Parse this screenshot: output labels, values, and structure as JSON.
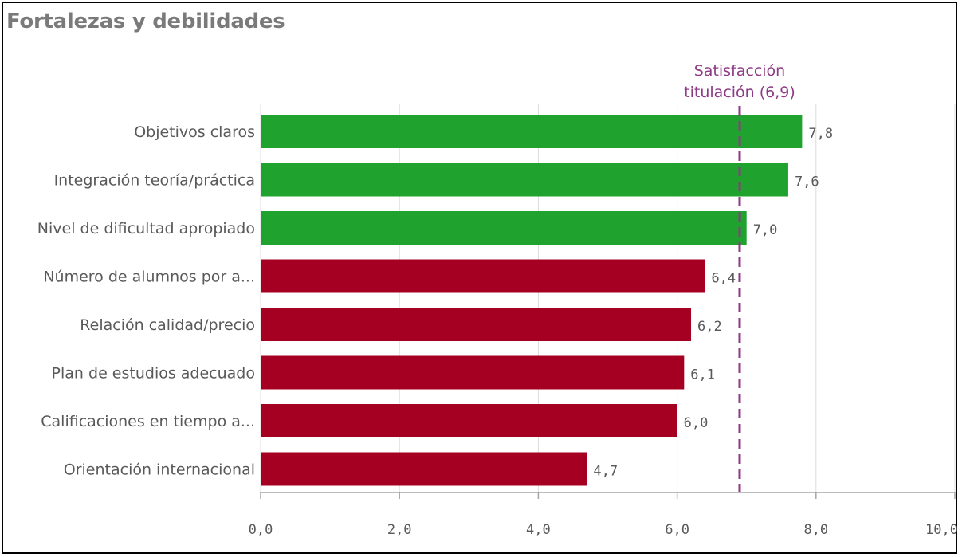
{
  "header": {
    "title": "Fortalezas y debilidades"
  },
  "colors": {
    "strength": "#1fa22e",
    "weakness": "#a50021",
    "reference": "#8e3b86",
    "grid": "#dcdcdc",
    "axis": "#a6a6a6"
  },
  "chart_data": {
    "type": "bar",
    "orientation": "horizontal",
    "title": "Fortalezas y debilidades",
    "categories": [
      "Objetivos claros",
      "Integración teoría/práctica",
      "Nivel de dificultad apropiado",
      "Número de alumnos por a...",
      "Relación calidad/precio",
      "Plan de estudios adecuado",
      "Calificaciones en tiempo a...",
      "Orientación internacional"
    ],
    "values": [
      7.8,
      7.6,
      7.0,
      6.4,
      6.2,
      6.1,
      6.0,
      4.7
    ],
    "value_labels": [
      "7,8",
      "7,6",
      "7,0",
      "6,4",
      "6,2",
      "6,1",
      "6,0",
      "4,7"
    ],
    "bar_groups": [
      "strength",
      "strength",
      "strength",
      "weakness",
      "weakness",
      "weakness",
      "weakness",
      "weakness"
    ],
    "xlim": [
      0,
      10
    ],
    "xticks": [
      0,
      2,
      4,
      6,
      8,
      10
    ],
    "xtick_labels": [
      "0,0",
      "2,0",
      "4,0",
      "6,0",
      "8,0",
      "10,0"
    ],
    "grid": true,
    "reference_line": {
      "value": 6.9,
      "label_lines": [
        "Satisfacción",
        "titulación (6,9)"
      ],
      "style": "dashed"
    }
  }
}
